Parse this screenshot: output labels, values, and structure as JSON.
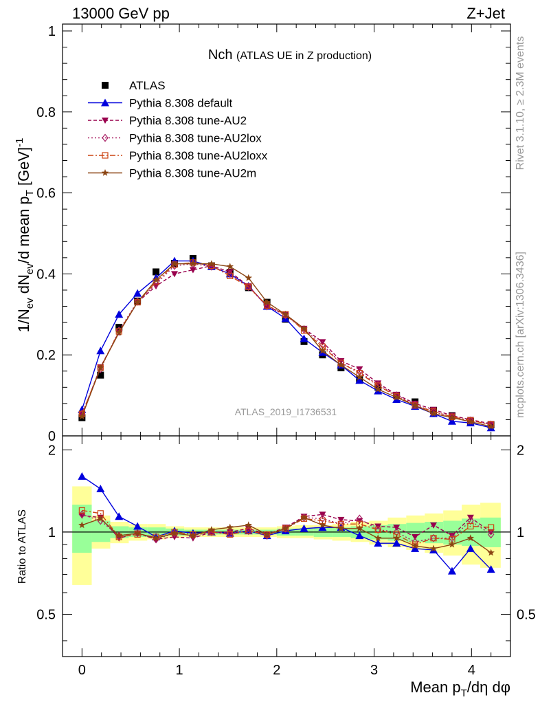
{
  "header": {
    "left": "13000 GeV pp",
    "right": "Z+Jet"
  },
  "side": {
    "rivet": "Rivet 3.1.10, ≥ 2.3M events",
    "mcplots": "mcplots.cern.ch [arXiv:1306.3436]"
  },
  "chart_data": {
    "type": "line",
    "title": "Nch",
    "subtitle": "(ATLAS UE in Z production)",
    "watermark": "ATLAS_2019_I1736531",
    "xlabel": "Mean p_T/dη dφ",
    "ylabel": "1/N_ev dN_ev/d mean p_T [GeV]^-1",
    "ratio_ylabel": "Ratio to ATLAS",
    "xlim": [
      -0.2,
      4.4
    ],
    "ylim": [
      0,
      1.0
    ],
    "ratio_ylim": [
      0.35,
      2.25
    ],
    "x_ticks": [
      "0",
      "1",
      "2",
      "3",
      "4"
    ],
    "y_ticks": [
      "0",
      "0.2",
      "0.4",
      "0.6",
      "0.8",
      "1"
    ],
    "ratio_ticks": [
      "0.5",
      "1",
      "2"
    ],
    "legend_position": "top-left",
    "x": [
      0.0,
      0.19,
      0.38,
      0.57,
      0.76,
      0.95,
      1.14,
      1.33,
      1.52,
      1.71,
      1.9,
      2.09,
      2.28,
      2.47,
      2.66,
      2.85,
      3.04,
      3.23,
      3.42,
      3.61,
      3.8,
      3.99,
      4.2
    ],
    "band_edges": [
      -0.1,
      0.1,
      0.29,
      0.48,
      0.67,
      0.86,
      1.05,
      1.24,
      1.43,
      1.62,
      1.81,
      2.0,
      2.19,
      2.38,
      2.57,
      2.76,
      2.95,
      3.14,
      3.33,
      3.52,
      3.71,
      3.9,
      4.09,
      4.3
    ],
    "ratio_band_inner": [
      [
        0.84,
        1.26
      ],
      [
        0.92,
        1.1
      ],
      [
        0.95,
        1.05
      ],
      [
        0.96,
        1.04
      ],
      [
        0.96,
        1.04
      ],
      [
        0.97,
        1.03
      ],
      [
        0.98,
        1.02
      ],
      [
        0.98,
        1.02
      ],
      [
        0.98,
        1.02
      ],
      [
        0.98,
        1.02
      ],
      [
        0.98,
        1.02
      ],
      [
        0.97,
        1.03
      ],
      [
        0.97,
        1.03
      ],
      [
        0.96,
        1.04
      ],
      [
        0.96,
        1.04
      ],
      [
        0.95,
        1.05
      ],
      [
        0.94,
        1.06
      ],
      [
        0.93,
        1.07
      ],
      [
        0.92,
        1.08
      ],
      [
        0.91,
        1.09
      ],
      [
        0.9,
        1.1
      ],
      [
        0.89,
        1.12
      ],
      [
        0.88,
        1.13
      ]
    ],
    "ratio_band_outer": [
      [
        0.64,
        1.47
      ],
      [
        0.87,
        1.15
      ],
      [
        0.91,
        1.09
      ],
      [
        0.93,
        1.07
      ],
      [
        0.94,
        1.07
      ],
      [
        0.95,
        1.05
      ],
      [
        0.96,
        1.04
      ],
      [
        0.96,
        1.04
      ],
      [
        0.96,
        1.04
      ],
      [
        0.96,
        1.04
      ],
      [
        0.96,
        1.04
      ],
      [
        0.95,
        1.05
      ],
      [
        0.95,
        1.06
      ],
      [
        0.94,
        1.06
      ],
      [
        0.93,
        1.07
      ],
      [
        0.92,
        1.09
      ],
      [
        0.9,
        1.1
      ],
      [
        0.88,
        1.13
      ],
      [
        0.86,
        1.15
      ],
      [
        0.84,
        1.17
      ],
      [
        0.82,
        1.2
      ],
      [
        0.76,
        1.26
      ],
      [
        0.74,
        1.28
      ]
    ],
    "series": [
      {
        "name": "ATLAS",
        "color": "#000000",
        "marker": "square",
        "values": [
          0.045,
          0.15,
          0.268,
          0.333,
          0.405,
          0.426,
          0.438,
          0.42,
          0.404,
          0.366,
          0.33,
          0.288,
          0.233,
          0.2,
          0.168,
          0.14,
          0.12,
          0.1,
          0.084,
          0.063,
          0.05,
          0.036,
          0.027
        ]
      },
      {
        "name": "Pythia 8.308 default",
        "color": "#0000dd",
        "marker": "triangle-up",
        "dash": "",
        "values": [
          0.065,
          0.21,
          0.3,
          0.352,
          0.39,
          0.432,
          0.432,
          0.418,
          0.4,
          0.37,
          0.32,
          0.29,
          0.24,
          0.206,
          0.175,
          0.137,
          0.111,
          0.09,
          0.073,
          0.055,
          0.036,
          0.032,
          0.02
        ],
        "ratio": [
          1.6,
          1.44,
          1.14,
          1.05,
          0.96,
          1.01,
          0.99,
          1.0,
          0.99,
          1.01,
          0.97,
          1.01,
          1.03,
          1.04,
          1.04,
          0.97,
          0.91,
          0.91,
          0.87,
          0.86,
          0.72,
          0.87,
          0.73
        ]
      },
      {
        "name": "Pythia 8.308 tune-AU2",
        "color": "#99004d",
        "marker": "triangle-down",
        "dash": "5,3",
        "values": [
          0.052,
          0.17,
          0.255,
          0.33,
          0.37,
          0.4,
          0.41,
          0.42,
          0.405,
          0.37,
          0.32,
          0.3,
          0.265,
          0.232,
          0.185,
          0.165,
          0.13,
          0.102,
          0.08,
          0.065,
          0.05,
          0.04,
          0.03
        ],
        "ratio": [
          1.15,
          1.13,
          0.95,
          0.99,
          0.94,
          0.96,
          0.95,
          1.0,
          1.0,
          1.03,
          0.98,
          1.04,
          1.14,
          1.16,
          1.11,
          1.1,
          1.05,
          1.04,
          0.96,
          1.06,
          0.97,
          1.13,
          1.0
        ]
      },
      {
        "name": "Pythia 8.308 tune-AU2lox",
        "color": "#aa2266",
        "marker": "diamond",
        "dash": "2,3",
        "values": [
          0.055,
          0.165,
          0.26,
          0.332,
          0.375,
          0.42,
          0.425,
          0.418,
          0.4,
          0.368,
          0.32,
          0.298,
          0.263,
          0.225,
          0.18,
          0.158,
          0.126,
          0.1,
          0.077,
          0.06,
          0.047,
          0.038,
          0.028
        ],
        "ratio": [
          1.16,
          1.1,
          0.97,
          0.99,
          0.94,
          0.99,
          0.97,
          1.0,
          0.99,
          1.01,
          0.97,
          1.03,
          1.13,
          1.12,
          1.07,
          1.12,
          1.02,
          1.0,
          0.92,
          0.95,
          0.95,
          1.1,
          0.98
        ]
      },
      {
        "name": "Pythia 8.308 tune-AU2loxx",
        "color": "#cc4411",
        "marker": "square-open",
        "dash": "8,3,2,3",
        "values": [
          0.054,
          0.168,
          0.258,
          0.33,
          0.38,
          0.423,
          0.428,
          0.42,
          0.395,
          0.368,
          0.322,
          0.3,
          0.26,
          0.22,
          0.18,
          0.155,
          0.124,
          0.098,
          0.075,
          0.06,
          0.047,
          0.038,
          0.028
        ],
        "ratio": [
          1.2,
          1.17,
          0.96,
          0.98,
          0.96,
          1.0,
          0.98,
          1.0,
          0.98,
          1.01,
          0.98,
          1.03,
          1.12,
          1.1,
          1.07,
          1.07,
          1.02,
          0.98,
          0.9,
          0.95,
          0.94,
          1.05,
          1.04
        ]
      },
      {
        "name": "Pythia 8.308 tune-AU2m",
        "color": "#8b4513",
        "marker": "star",
        "dash": "",
        "values": [
          0.048,
          0.168,
          0.255,
          0.33,
          0.385,
          0.425,
          0.425,
          0.425,
          0.418,
          0.39,
          0.33,
          0.3,
          0.265,
          0.21,
          0.175,
          0.145,
          0.115,
          0.095,
          0.075,
          0.055,
          0.045,
          0.035,
          0.023
        ],
        "ratio": [
          1.06,
          1.12,
          0.97,
          0.99,
          0.95,
          0.99,
          0.97,
          1.02,
          1.04,
          1.06,
          0.98,
          1.03,
          1.13,
          1.06,
          1.03,
          1.03,
          0.95,
          0.95,
          0.89,
          0.87,
          0.9,
          0.95,
          0.84
        ]
      }
    ]
  }
}
